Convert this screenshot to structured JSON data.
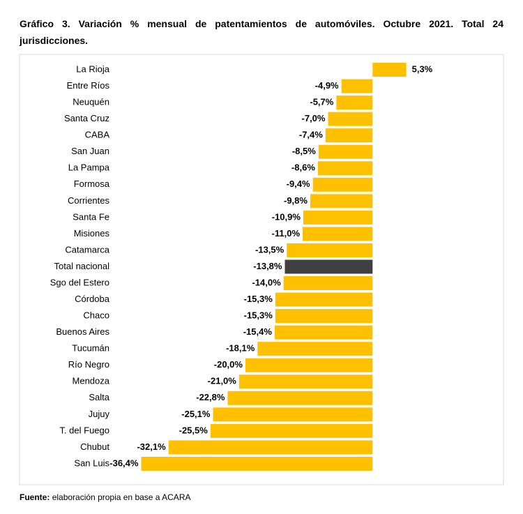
{
  "chart_data": {
    "type": "barh",
    "title": "Gráfico 3. Variación % mensual de patentamientos de automóviles. Octubre 2021. Total 24 jurisdicciones.",
    "categories": [
      "La Rioja",
      "Entre Ríos",
      "Neuquén",
      "Santa Cruz",
      "CABA",
      "San Juan",
      "La Pampa",
      "Formosa",
      "Corrientes",
      "Santa Fe",
      "Misiones",
      "Catamarca",
      "Total nacional",
      "Sgo del Estero",
      "Córdoba",
      "Chaco",
      "Buenos Aires",
      "Tucumán",
      "Río Negro",
      "Mendoza",
      "Salta",
      "Jujuy",
      "T. del Fuego",
      "Chubut",
      "San Luis"
    ],
    "values": [
      5.3,
      -4.9,
      -5.7,
      -7.0,
      -7.4,
      -8.5,
      -8.6,
      -9.4,
      -9.8,
      -10.9,
      -11.0,
      -13.5,
      -13.8,
      -14.0,
      -15.3,
      -15.3,
      -15.4,
      -18.1,
      -20.0,
      -21.0,
      -22.8,
      -25.1,
      -25.5,
      -32.1,
      -36.4
    ],
    "value_labels": [
      "5,3%",
      "-4,9%",
      "-5,7%",
      "-7,0%",
      "-7,4%",
      "-8,5%",
      "-8,6%",
      "-9,4%",
      "-9,8%",
      "-10,9%",
      "-11,0%",
      "-13,5%",
      "-13,8%",
      "-14,0%",
      "-15,3%",
      "-15,3%",
      "-15,4%",
      "-18,1%",
      "-20,0%",
      "-21,0%",
      "-22,8%",
      "-25,1%",
      "-25,5%",
      "-32,1%",
      "-36,4%"
    ],
    "colors": [
      "#ffc000",
      "#ffc000",
      "#ffc000",
      "#ffc000",
      "#ffc000",
      "#ffc000",
      "#ffc000",
      "#ffc000",
      "#ffc000",
      "#ffc000",
      "#ffc000",
      "#ffc000",
      "#404040",
      "#ffc000",
      "#ffc000",
      "#ffc000",
      "#ffc000",
      "#ffc000",
      "#ffc000",
      "#ffc000",
      "#ffc000",
      "#ffc000",
      "#ffc000",
      "#ffc000",
      "#ffc000"
    ],
    "xlim": [
      -37,
      6
    ]
  },
  "source": {
    "label": "Fuente:",
    "text": "elaboración propia en base a ACARA"
  }
}
